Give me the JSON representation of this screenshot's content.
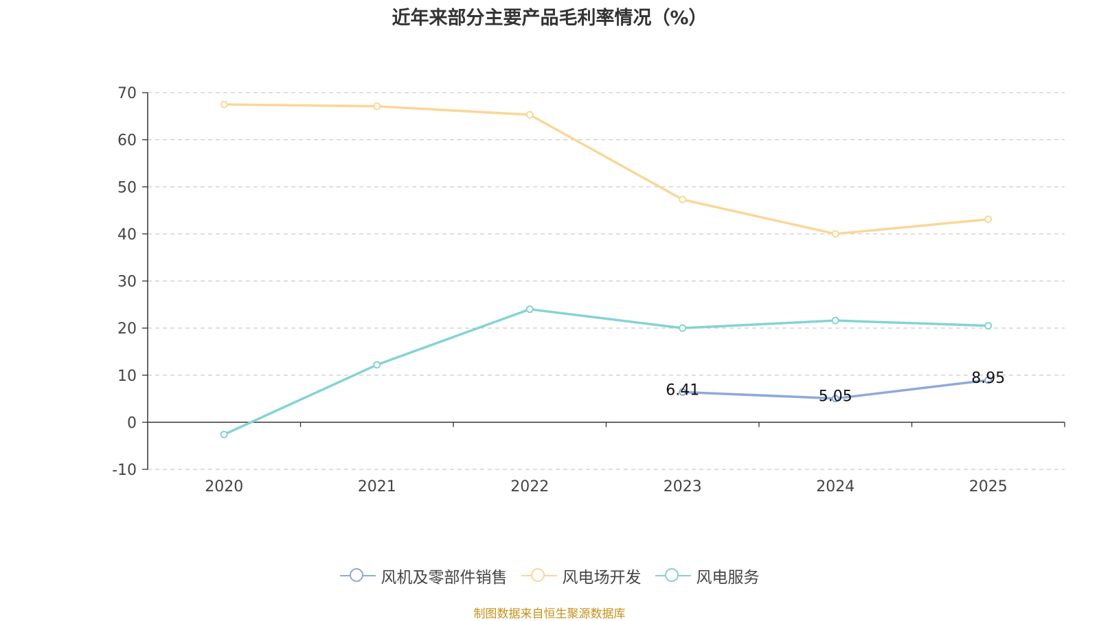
{
  "title": "近年来部分主要产品毛利率情况（%）",
  "source_note": "制图数据来自恒生聚源数据库",
  "chart_data": {
    "type": "line",
    "categories": [
      "2020",
      "2021",
      "2022",
      "2023",
      "2024",
      "2025"
    ],
    "ylim": [
      -10,
      70
    ],
    "yticks": [
      -10,
      0,
      10,
      20,
      30,
      40,
      50,
      60,
      70
    ],
    "grid": true,
    "legend_position": "bottom",
    "series": [
      {
        "name": "风机及零部件销售",
        "color": "#8fa9d8",
        "values": [
          null,
          null,
          null,
          6.41,
          5.05,
          8.95
        ],
        "labels": [
          "",
          "",
          "",
          "6.41",
          "5.05",
          "8.95"
        ]
      },
      {
        "name": "风电场开发",
        "color": "#fad797",
        "values": [
          67.5,
          67.1,
          65.3,
          47.3,
          40.0,
          43.1
        ],
        "labels": [
          "",
          "",
          "",
          "",
          "",
          ""
        ]
      },
      {
        "name": "风电服务",
        "color": "#84d3d4",
        "values": [
          -2.6,
          12.2,
          24.0,
          20.0,
          21.6,
          20.5
        ],
        "labels": [
          "",
          "",
          "",
          "",
          "",
          ""
        ]
      }
    ]
  }
}
